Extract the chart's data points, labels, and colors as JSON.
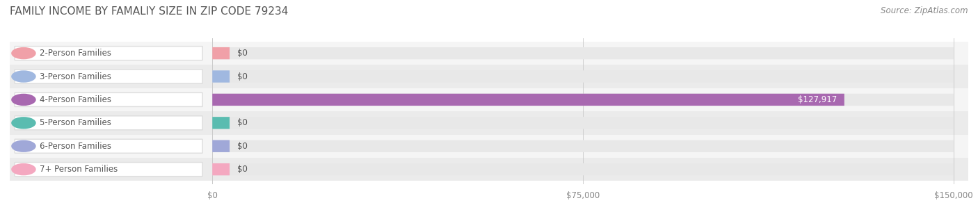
{
  "title": "FAMILY INCOME BY FAMALIY SIZE IN ZIP CODE 79234",
  "source_text": "Source: ZipAtlas.com",
  "categories": [
    "2-Person Families",
    "3-Person Families",
    "4-Person Families",
    "5-Person Families",
    "6-Person Families",
    "7+ Person Families"
  ],
  "values": [
    0,
    0,
    127917,
    0,
    0,
    0
  ],
  "bar_colors": [
    "#f0a0a8",
    "#a0b8e0",
    "#a868b0",
    "#5abcb0",
    "#a0a8d8",
    "#f4a8c0"
  ],
  "xlim_max": 150000,
  "xtick_labels": [
    "$0",
    "$75,000",
    "$150,000"
  ],
  "value_label_4person": "$127,917",
  "zero_label": "$0",
  "background_color": "#ffffff",
  "title_fontsize": 11,
  "label_fontsize": 8.5,
  "tick_fontsize": 8.5,
  "source_fontsize": 8.5,
  "title_color": "#555555",
  "label_color": "#555555",
  "source_color": "#888888",
  "bar_value_color_zero": "#555555",
  "bar_value_color_nonzero": "#ffffff",
  "row_bg_even": "#f5f5f5",
  "row_bg_odd": "#ebebeb",
  "label_box_color": "#ffffff",
  "bar_track_color": "#e8e8e8"
}
